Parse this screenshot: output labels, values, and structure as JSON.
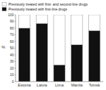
{
  "chart_data": {
    "type": "bar",
    "stacked": true,
    "categories": [
      "Estonia",
      "Latvia",
      "Lima",
      "Manila",
      "Tomsk"
    ],
    "series": [
      {
        "name": "Previously treated with first-line drugs",
        "color": "#111111",
        "values": [
          80,
          87,
          25,
          55,
          76
        ]
      },
      {
        "name": "Previously treated with first- and second-line drugs",
        "color": "#ffffff",
        "values": [
          20,
          13,
          75,
          45,
          24
        ]
      }
    ],
    "y_label": "%",
    "ylim": [
      0,
      100
    ],
    "yticks": [
      0,
      10,
      20,
      30,
      40,
      50,
      60,
      70,
      80,
      90,
      100
    ],
    "grid": false,
    "legend": "upper left"
  }
}
